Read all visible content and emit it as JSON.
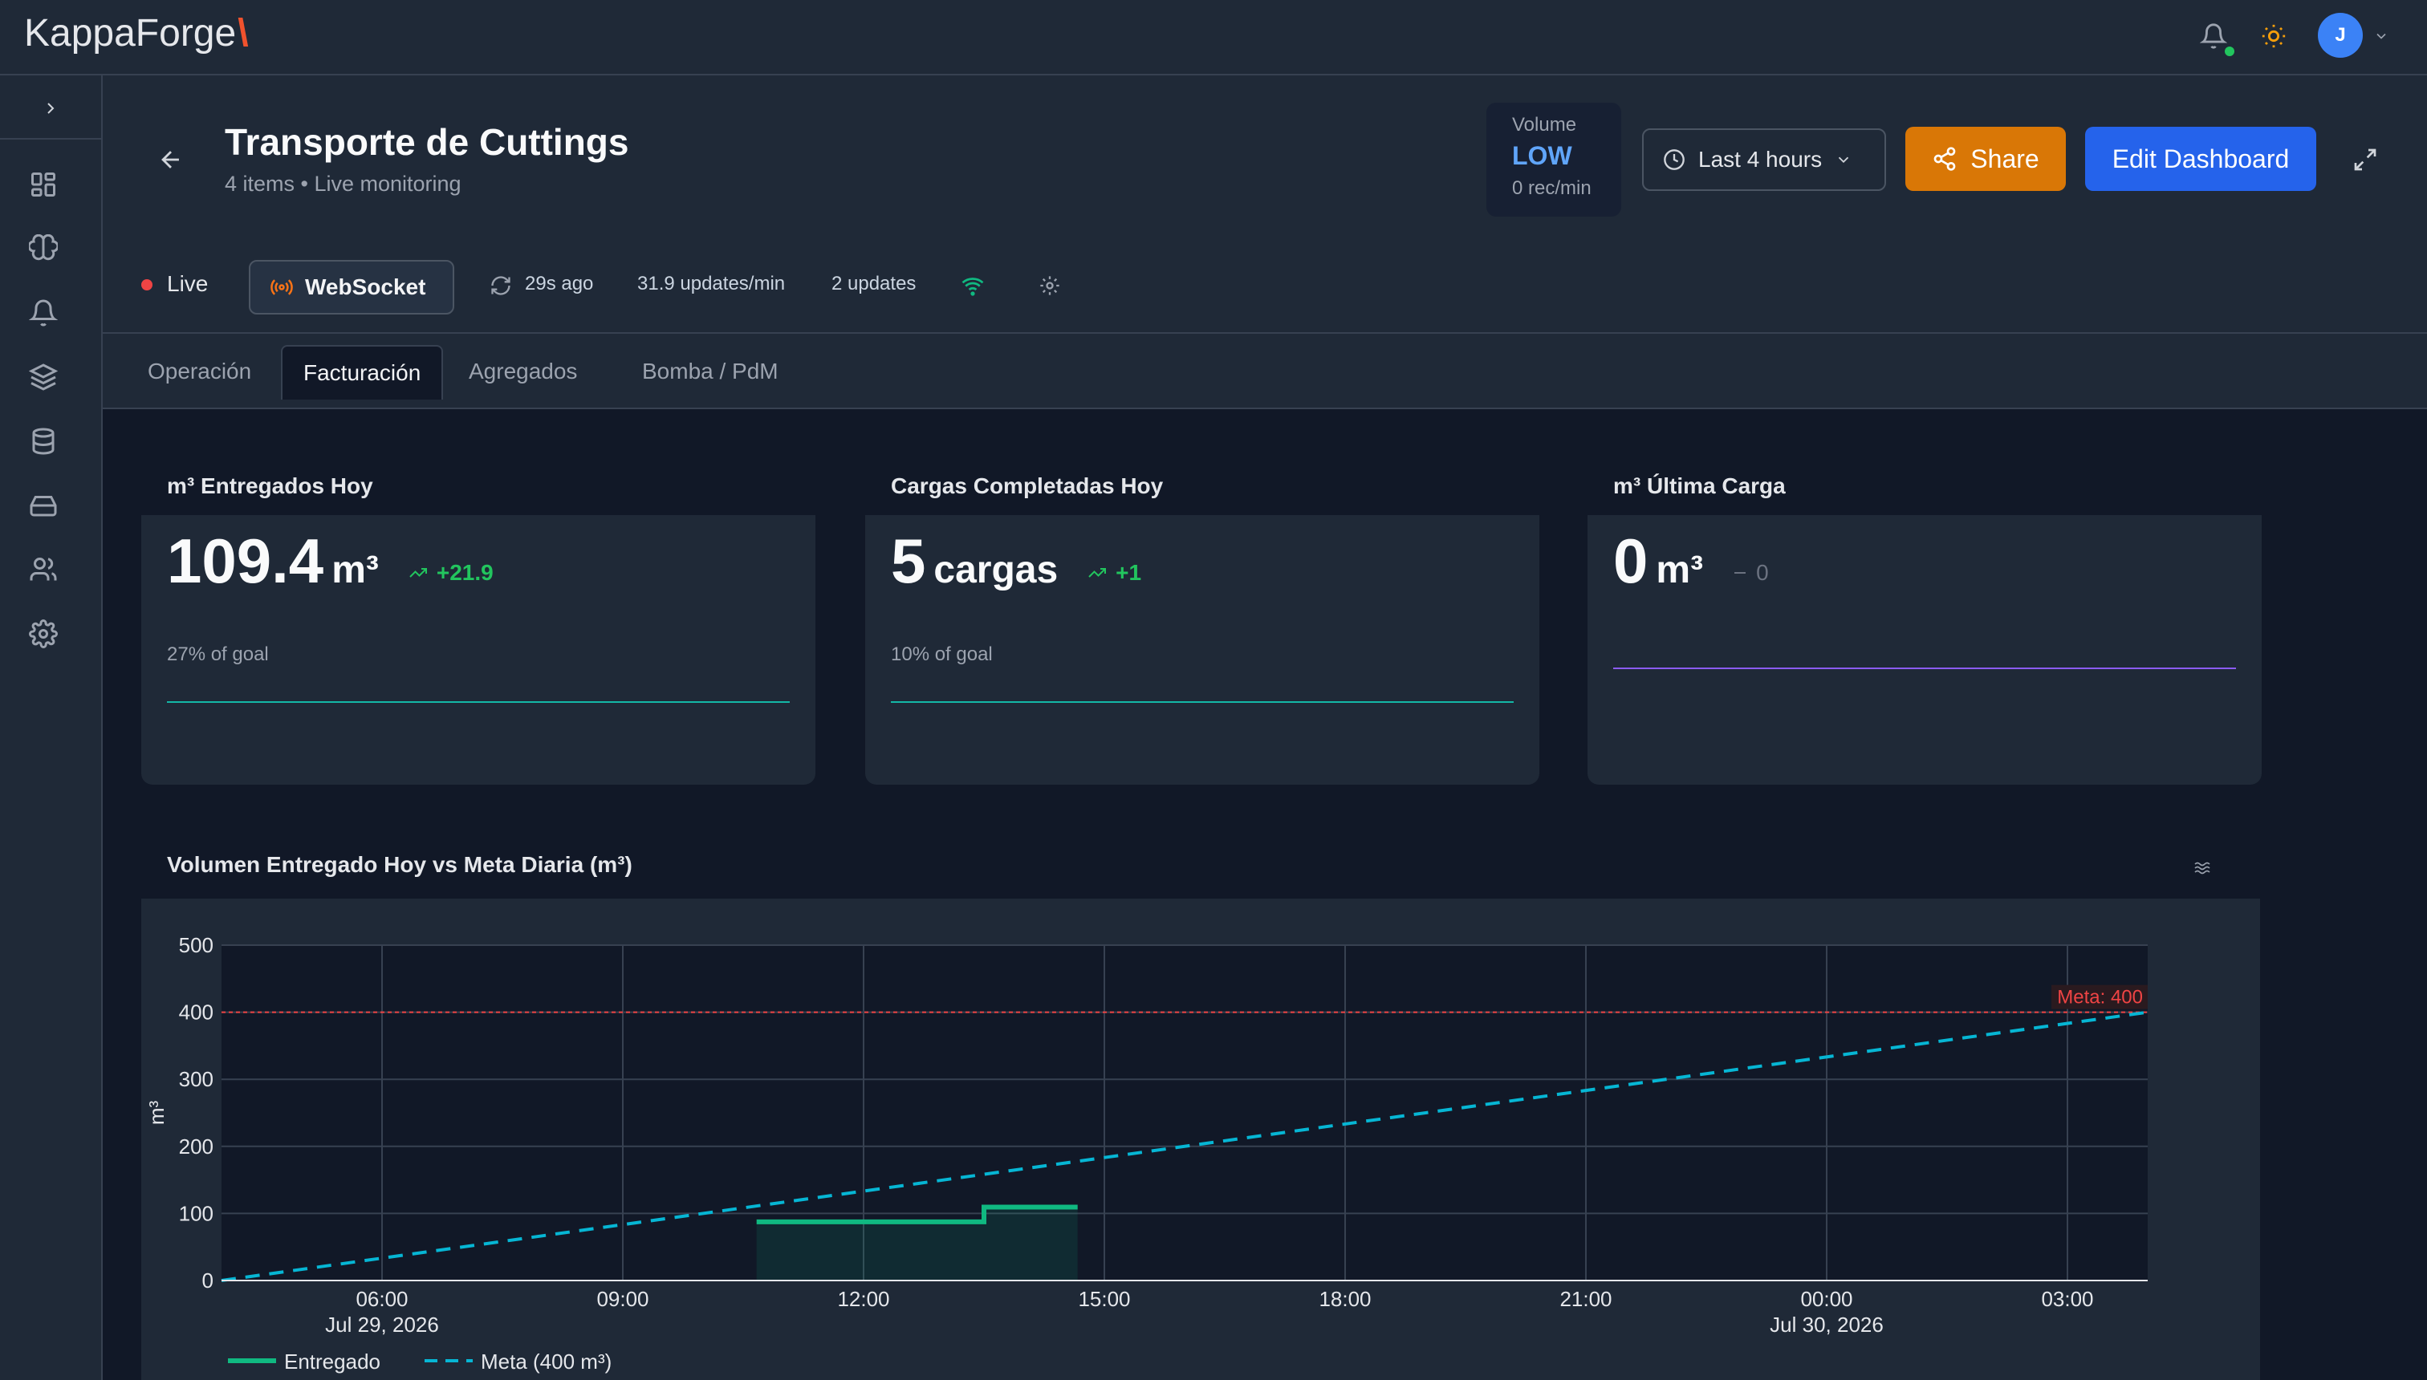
{
  "app": {
    "logo_main": "KappaForge",
    "logo_accent": "\\"
  },
  "topbar": {
    "avatar_initial": "J"
  },
  "header": {
    "title": "Transporte de Cuttings",
    "subtitle": "4 items • Live monitoring",
    "volume_label": "Volume",
    "volume_level": "LOW",
    "volume_rate": "0 rec/min",
    "time_range": "Last 4 hours",
    "share_label": "Share",
    "edit_label": "Edit Dashboard"
  },
  "status": {
    "live": "Live",
    "connection": "WebSocket",
    "last_update": "29s ago",
    "rate": "31.9 updates/min",
    "updates": "2 updates"
  },
  "tabs": [
    "Operación",
    "Facturación",
    "Agregados",
    "Bomba / PdM"
  ],
  "active_tab": 1,
  "kpis": [
    {
      "title": "m³ Entregados Hoy",
      "value": "109.4",
      "unit": "m³",
      "delta": "+21.9",
      "goal": "27% of goal",
      "trend": "up",
      "line_color": "#14b8a6"
    },
    {
      "title": "Cargas Completadas Hoy",
      "value": "5",
      "unit": "cargas",
      "delta": "+1",
      "goal": "10% of goal",
      "trend": "up",
      "line_color": "#14b8a6"
    },
    {
      "title": "m³ Última Carga",
      "value": "0",
      "unit": "m³",
      "delta": "0",
      "goal": "",
      "trend": "flat",
      "line_color": "#8b5cf6"
    }
  ],
  "chart_title": "Volumen Entregado Hoy vs Meta Diaria (m³)",
  "chart_data": {
    "type": "line",
    "title": "Volumen Entregado Hoy vs Meta Diaria (m³)",
    "ylabel": "m³",
    "xlabel": "",
    "ylim": [
      0,
      500
    ],
    "xlim": [
      "2026-07-29 04:00",
      "2026-07-30 04:00"
    ],
    "yticks": [
      0,
      100,
      200,
      300,
      400,
      500
    ],
    "xticks": [
      {
        "at": "2026-07-29 06:00",
        "label": "06:00",
        "sub": "Jul 29, 2026"
      },
      {
        "at": "2026-07-29 09:00",
        "label": "09:00",
        "sub": ""
      },
      {
        "at": "2026-07-29 12:00",
        "label": "12:00",
        "sub": ""
      },
      {
        "at": "2026-07-29 15:00",
        "label": "15:00",
        "sub": ""
      },
      {
        "at": "2026-07-29 18:00",
        "label": "18:00",
        "sub": ""
      },
      {
        "at": "2026-07-29 21:00",
        "label": "21:00",
        "sub": ""
      },
      {
        "at": "2026-07-30 00:00",
        "label": "00:00",
        "sub": "Jul 30, 2026"
      },
      {
        "at": "2026-07-30 03:00",
        "label": "03:00",
        "sub": ""
      }
    ],
    "series": [
      {
        "name": "Entregado",
        "style": "step-filled",
        "color": "#10b981",
        "points": [
          [
            "2026-07-29 10:40",
            87.5
          ],
          [
            "2026-07-29 13:30",
            87.5
          ],
          [
            "2026-07-29 13:30",
            109.4
          ],
          [
            "2026-07-29 14:40",
            109.4
          ]
        ]
      },
      {
        "name": "Meta (400 m³)",
        "style": "dashed",
        "color": "#06b6d4",
        "points": [
          [
            "2026-07-29 04:00",
            0
          ],
          [
            "2026-07-30 04:00",
            400
          ]
        ]
      }
    ],
    "reference_line": {
      "y": 400,
      "label": "Meta: 400",
      "color": "#ef4444"
    },
    "legend_position": "bottom-left",
    "grid": true
  }
}
